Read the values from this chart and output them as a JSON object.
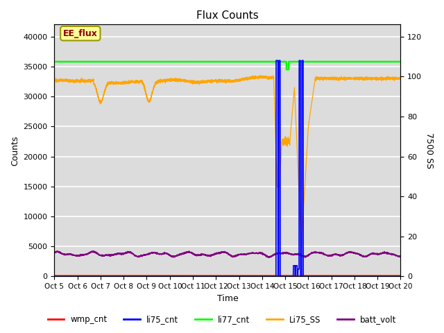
{
  "title": "Flux Counts",
  "xlabel": "Time",
  "ylabel_left": "Counts",
  "ylabel_right": "7500 SS",
  "left_ylim": [
    0,
    42000
  ],
  "right_ylim": [
    0,
    126
  ],
  "bg_color": "#dcdcdc",
  "annotation_text": "EE_flux",
  "annotation_box_color": "#ffff99",
  "annotation_box_edge": "#999900",
  "xtick_labels": [
    "Oct 5",
    "Oct 6",
    "Oct 7",
    "Oct 8",
    "Oct 9",
    "Oct 10",
    "Oct 11",
    "Oct 12",
    "Oct 13",
    "Oct 14",
    "Oct 15",
    "Oct 16",
    "Oct 17",
    "Oct 18",
    "Oct 19",
    "Oct 20"
  ],
  "legend_entries": [
    "wmp_cnt",
    "li75_cnt",
    "li77_cnt",
    "Li75_SS",
    "batt_volt"
  ],
  "legend_colors": [
    "red",
    "blue",
    "lime",
    "orange",
    "purple"
  ],
  "figsize": [
    6.4,
    4.8
  ],
  "dpi": 100
}
